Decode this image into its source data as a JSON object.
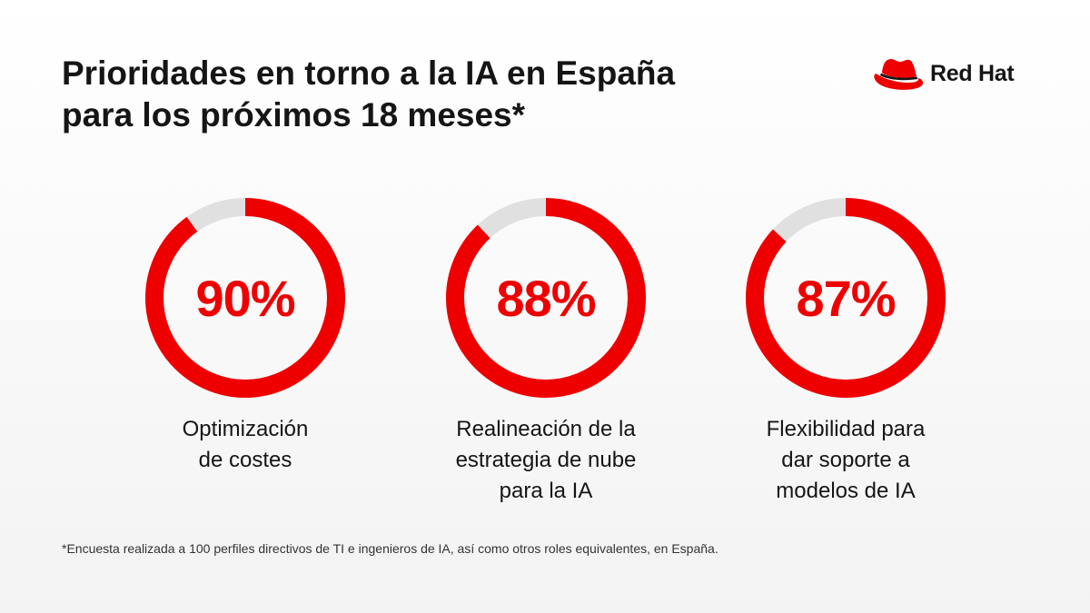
{
  "title": {
    "line1": "Prioridades en torno a la IA en España",
    "line2": "para los próximos 18 meses*"
  },
  "logo": {
    "icon": "red-hat-fedora-icon",
    "text": "Red Hat"
  },
  "colors": {
    "accent": "#ee0000",
    "track": "#e0e0e0",
    "text": "#151515"
  },
  "chart_data": {
    "type": "pie",
    "style": "donut",
    "unit": "%",
    "items": [
      {
        "value": 90,
        "display": "90%",
        "label_lines": [
          "Optimización",
          "de costes"
        ]
      },
      {
        "value": 88,
        "display": "88%",
        "label_lines": [
          "Realineación de la",
          "estrategia de nube",
          "para la IA"
        ]
      },
      {
        "value": 87,
        "display": "87%",
        "label_lines": [
          "Flexibilidad para",
          "dar soporte a",
          "modelos de IA"
        ]
      }
    ]
  },
  "footnote": "*Encuesta realizada a 100 perfiles directivos de TI e ingenieros de IA, así como otros roles equivalentes, en España."
}
